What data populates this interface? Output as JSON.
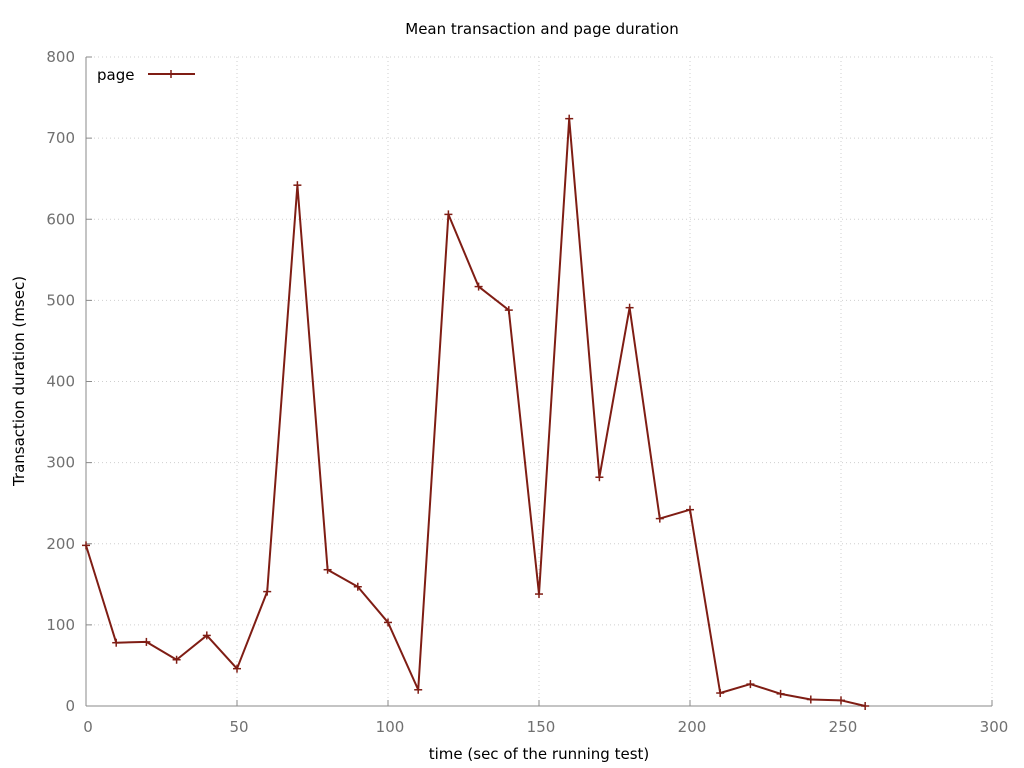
{
  "chart_data": {
    "type": "line",
    "title": "Mean transaction and page duration",
    "xlabel": "time (sec of the running test)",
    "ylabel": "Transaction duration (msec)",
    "xlim": [
      0,
      300
    ],
    "ylim": [
      0,
      800
    ],
    "xticks": [
      0,
      50,
      100,
      150,
      200,
      250,
      300
    ],
    "yticks": [
      0,
      100,
      200,
      300,
      400,
      500,
      600,
      700,
      800
    ],
    "grid": true,
    "legend_position": "top-left",
    "series": [
      {
        "name": "page",
        "color": "#7f1d14",
        "marker": "plus",
        "x": [
          0,
          10,
          20,
          30,
          40,
          50,
          60,
          70,
          80,
          90,
          100,
          110,
          120,
          130,
          140,
          150,
          160,
          170,
          180,
          190,
          200,
          210,
          220,
          230,
          240,
          250,
          258
        ],
        "y": [
          198,
          78,
          79,
          57,
          87,
          46,
          141,
          642,
          168,
          147,
          103,
          20,
          606,
          517,
          488,
          138,
          724,
          282,
          491,
          231,
          242,
          16,
          27,
          15,
          8,
          7,
          0
        ]
      }
    ]
  }
}
